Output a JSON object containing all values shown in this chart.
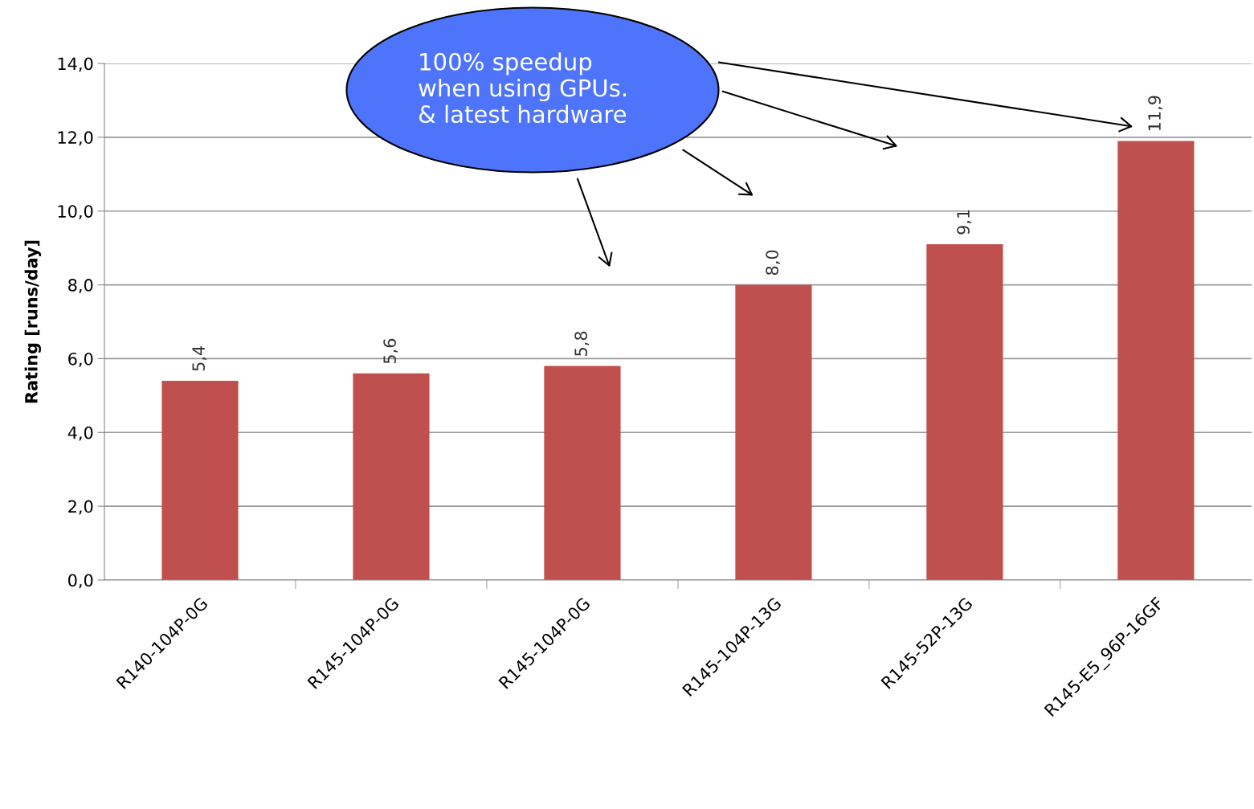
{
  "chart_data": {
    "type": "bar",
    "ylabel": "Rating [runs/day]",
    "categories": [
      "R140-104P-0G",
      "R145-104P-0G",
      "R145-104P-0G",
      "R145-104P-13G",
      "R145-52P-13G",
      "R145-E5_96P-16GF"
    ],
    "values": [
      5.4,
      5.6,
      5.8,
      8.0,
      9.1,
      11.9
    ],
    "value_labels": [
      "5,4",
      "5,6",
      "5,8",
      "8,0",
      "9,1",
      "11,9"
    ],
    "color": "#c0504d",
    "ylim": [
      0,
      14
    ],
    "yticks": [
      {
        "value": 0,
        "label": "0,0"
      },
      {
        "value": 2,
        "label": "2,0"
      },
      {
        "value": 4,
        "label": "4,0"
      },
      {
        "value": 6,
        "label": "6,0"
      },
      {
        "value": 8,
        "label": "8,0"
      },
      {
        "value": 10,
        "label": "10,0"
      },
      {
        "value": 12,
        "label": "12,0"
      },
      {
        "value": 14,
        "label": "14,0"
      }
    ],
    "grid": "y",
    "annotations": [
      "100% speedup\nwhen using GPUs.\n& latest hardware"
    ]
  }
}
